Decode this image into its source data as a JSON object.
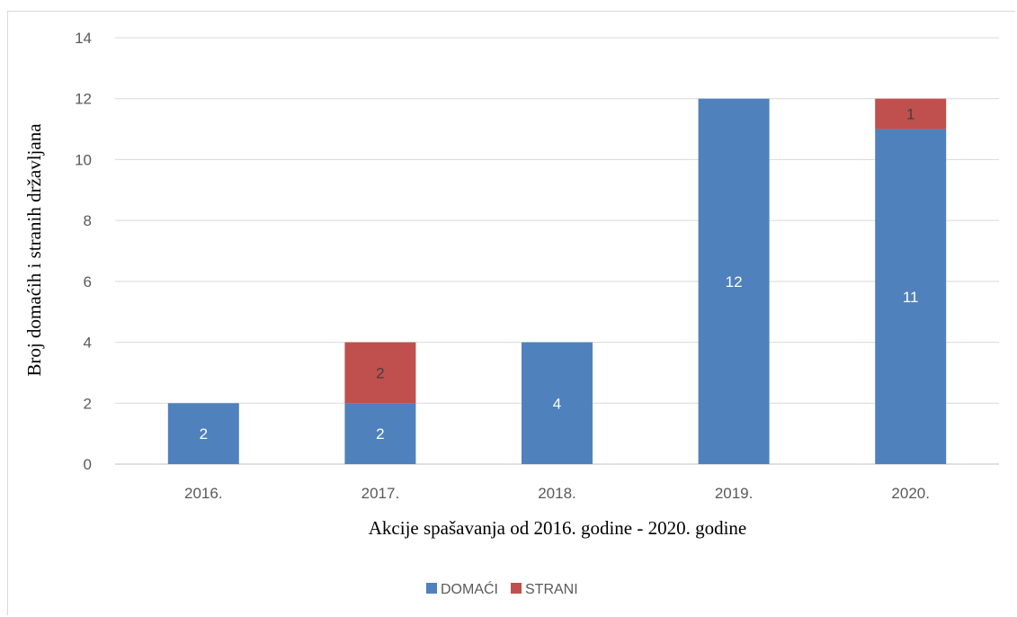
{
  "chart_data": {
    "type": "bar",
    "stacked": true,
    "categories": [
      "2016.",
      "2017.",
      "2018.",
      "2019.",
      "2020."
    ],
    "series": [
      {
        "name": "DOMAĆI",
        "values": [
          2,
          2,
          4,
          12,
          11
        ],
        "color": "#4f81bd"
      },
      {
        "name": "STRANI",
        "values": [
          0,
          2,
          0,
          0,
          1
        ],
        "color": "#c0504d"
      }
    ],
    "data_labels": [
      [
        "2",
        "2",
        "4",
        "12",
        "11"
      ],
      [
        "",
        "2",
        "",
        "",
        "1"
      ]
    ],
    "ylim": [
      0,
      14
    ],
    "yticks": [
      "0",
      "2",
      "4",
      "6",
      "8",
      "10",
      "12",
      "14"
    ],
    "xlabel": "Akcije spašavanja od 2016. godine - 2020. godine",
    "ylabel": "Broj domaćih i stranih državljana",
    "grid": true,
    "legend_position": "bottom"
  }
}
